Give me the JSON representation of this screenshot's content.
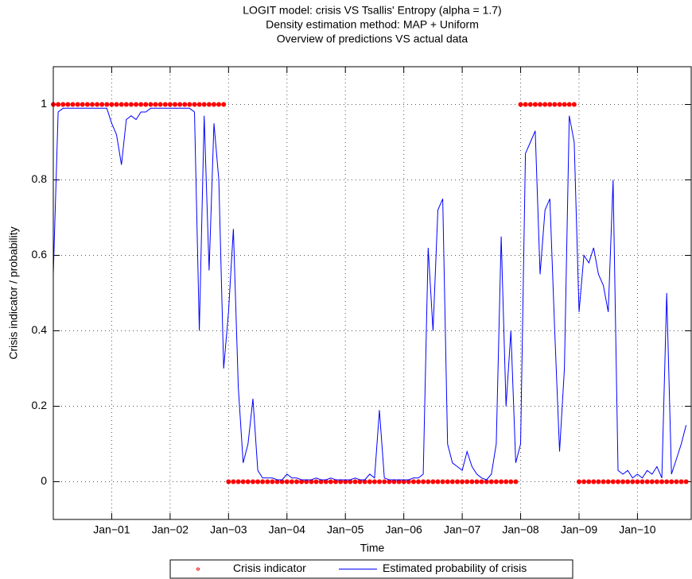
{
  "chart_data": {
    "type": "line",
    "title": [
      "LOGIT model: crisis VS Tsallis' Entropy (alpha = 1.7)",
      "Density estimation method: MAP + Uniform",
      "Overview of predictions VS actual data"
    ],
    "xlabel": "Time",
    "ylabel": "Crisis indicator / probability",
    "x": [
      2000,
      2000.083,
      2000.167,
      2000.25,
      2000.333,
      2000.417,
      2000.5,
      2000.583,
      2000.667,
      2000.75,
      2000.833,
      2000.917,
      2001,
      2001.083,
      2001.167,
      2001.25,
      2001.333,
      2001.417,
      2001.5,
      2001.583,
      2001.667,
      2001.75,
      2001.833,
      2001.917,
      2002,
      2002.083,
      2002.167,
      2002.25,
      2002.333,
      2002.417,
      2002.5,
      2002.583,
      2002.667,
      2002.75,
      2002.833,
      2002.917,
      2003,
      2003.083,
      2003.167,
      2003.25,
      2003.333,
      2003.417,
      2003.5,
      2003.583,
      2003.667,
      2003.75,
      2003.833,
      2003.917,
      2004,
      2004.083,
      2004.167,
      2004.25,
      2004.333,
      2004.417,
      2004.5,
      2004.583,
      2004.667,
      2004.75,
      2004.833,
      2004.917,
      2005,
      2005.083,
      2005.167,
      2005.25,
      2005.333,
      2005.417,
      2005.5,
      2005.583,
      2005.667,
      2005.75,
      2005.833,
      2005.917,
      2006,
      2006.083,
      2006.167,
      2006.25,
      2006.333,
      2006.417,
      2006.5,
      2006.583,
      2006.667,
      2006.75,
      2006.833,
      2006.917,
      2007,
      2007.083,
      2007.167,
      2007.25,
      2007.333,
      2007.417,
      2007.5,
      2007.583,
      2007.667,
      2007.75,
      2007.833,
      2007.917,
      2008,
      2008.083,
      2008.167,
      2008.25,
      2008.333,
      2008.417,
      2008.5,
      2008.583,
      2008.667,
      2008.75,
      2008.833,
      2008.917,
      2009,
      2009.083,
      2009.167,
      2009.25,
      2009.333,
      2009.417,
      2009.5,
      2009.583,
      2009.667,
      2009.75,
      2009.833,
      2009.917,
      2010,
      2010.083,
      2010.167,
      2010.25,
      2010.333,
      2010.417,
      2010.5,
      2010.583,
      2010.667,
      2010.75,
      2010.833
    ],
    "series": [
      {
        "name": "Crisis indicator",
        "color": "#ff0000",
        "style": "dots",
        "values": [
          1,
          1,
          1,
          1,
          1,
          1,
          1,
          1,
          1,
          1,
          1,
          1,
          1,
          1,
          1,
          1,
          1,
          1,
          1,
          1,
          1,
          1,
          1,
          1,
          1,
          1,
          1,
          1,
          1,
          1,
          1,
          1,
          1,
          1,
          1,
          1,
          0,
          0,
          0,
          0,
          0,
          0,
          0,
          0,
          0,
          0,
          0,
          0,
          0,
          0,
          0,
          0,
          0,
          0,
          0,
          0,
          0,
          0,
          0,
          0,
          0,
          0,
          0,
          0,
          0,
          0,
          0,
          0,
          0,
          0,
          0,
          0,
          0,
          0,
          0,
          0,
          0,
          0,
          0,
          0,
          0,
          0,
          0,
          0,
          0,
          0,
          0,
          0,
          0,
          0,
          0,
          0,
          0,
          0,
          0,
          0,
          1,
          1,
          1,
          1,
          1,
          1,
          1,
          1,
          1,
          1,
          1,
          1,
          0,
          0,
          0,
          0,
          0,
          0,
          0,
          0,
          0,
          0,
          0,
          0,
          0,
          0,
          0,
          0,
          0,
          0,
          0,
          0,
          0,
          0,
          0
        ]
      },
      {
        "name": "Estimated probability of crisis",
        "color": "#0000ff",
        "style": "line",
        "values": [
          0.55,
          0.98,
          0.99,
          0.99,
          0.99,
          0.99,
          0.99,
          0.99,
          0.99,
          0.99,
          0.99,
          0.99,
          0.95,
          0.92,
          0.84,
          0.96,
          0.97,
          0.96,
          0.98,
          0.98,
          0.99,
          0.99,
          0.99,
          0.99,
          0.99,
          0.99,
          0.99,
          0.99,
          0.99,
          0.98,
          0.4,
          0.97,
          0.56,
          0.95,
          0.8,
          0.3,
          0.45,
          0.67,
          0.25,
          0.05,
          0.1,
          0.22,
          0.03,
          0.01,
          0.01,
          0.01,
          0.005,
          0.005,
          0.02,
          0.01,
          0.01,
          0.005,
          0.005,
          0.005,
          0.01,
          0.005,
          0.005,
          0.01,
          0.005,
          0.005,
          0.005,
          0.005,
          0.01,
          0.005,
          0.005,
          0.02,
          0.01,
          0.19,
          0.01,
          0.005,
          0.005,
          0.005,
          0.005,
          0.005,
          0.01,
          0.01,
          0.02,
          0.62,
          0.4,
          0.72,
          0.75,
          0.1,
          0.05,
          0.04,
          0.03,
          0.08,
          0.04,
          0.02,
          0.01,
          0.005,
          0.02,
          0.1,
          0.65,
          0.2,
          0.4,
          0.05,
          0.1,
          0.87,
          0.9,
          0.93,
          0.55,
          0.72,
          0.75,
          0.4,
          0.08,
          0.3,
          0.97,
          0.9,
          0.45,
          0.6,
          0.58,
          0.62,
          0.55,
          0.52,
          0.45,
          0.8,
          0.03,
          0.02,
          0.03,
          0.01,
          0.02,
          0.01,
          0.03,
          0.02,
          0.04,
          0.01,
          0.5,
          0.02,
          0.06,
          0.1,
          0.15
        ]
      }
    ],
    "xlim": [
      2000,
      2010.92
    ],
    "xticks": [
      {
        "value": 2001,
        "label": "Jan−01"
      },
      {
        "value": 2002,
        "label": "Jan−02"
      },
      {
        "value": 2003,
        "label": "Jan−03"
      },
      {
        "value": 2004,
        "label": "Jan−04"
      },
      {
        "value": 2005,
        "label": "Jan−05"
      },
      {
        "value": 2006,
        "label": "Jan−06"
      },
      {
        "value": 2007,
        "label": "Jan−07"
      },
      {
        "value": 2008,
        "label": "Jan−08"
      },
      {
        "value": 2009,
        "label": "Jan−09"
      },
      {
        "value": 2010,
        "label": "Jan−10"
      }
    ],
    "ylim": [
      -0.1,
      1.1
    ],
    "yticks": [
      0,
      0.2,
      0.4,
      0.6,
      0.8,
      1
    ],
    "grid": true,
    "legend": "below"
  }
}
